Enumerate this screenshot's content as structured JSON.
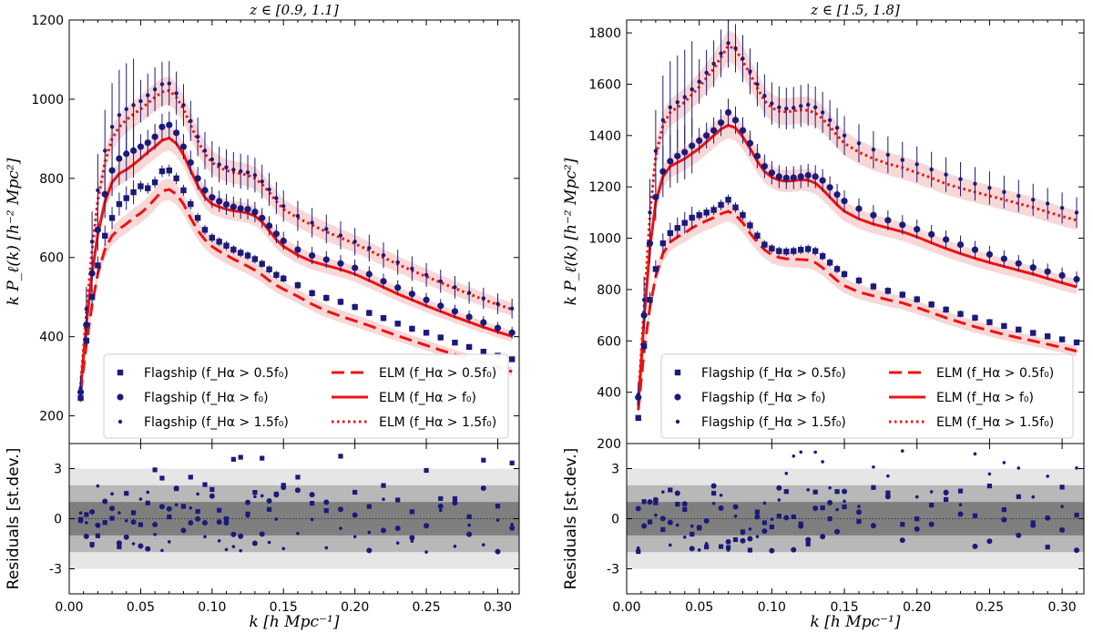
{
  "figure": {
    "ylabel_top": "k P_ℓ(k) [h⁻² Mpc²]",
    "ylabel_bottom": "Residuals [st.dev.]",
    "xlabel": "k [h Mpc⁻¹]"
  },
  "legend": {
    "flagship_05": "Flagship (f_Hα > 0.5f₀)",
    "flagship_10": "Flagship (f_Hα > f₀)",
    "flagship_15": "Flagship (f_Hα > 1.5f₀)",
    "elm_05": "ELM (f_Hα > 0.5f₀)",
    "elm_10": "ELM (f_Hα > f₀)",
    "elm_15": "ELM (f_Hα > 1.5f₀)"
  },
  "colors": {
    "data": "#1a1a7a",
    "model": "#ee1111",
    "band": "#f6c9c9"
  },
  "chart_data": [
    {
      "type": "scatter",
      "title": "z ∈ [0.9, 1.1]",
      "xlabel": "k [h Mpc⁻¹]",
      "ylabel": "k P_ℓ(k) [h⁻² Mpc²]",
      "xlim": [
        0.0,
        0.315
      ],
      "ylim": [
        130,
        1200
      ],
      "res_ylim": [
        -4.5,
        4.5
      ],
      "xticks": [
        "0.00",
        "0.05",
        "0.10",
        "0.15",
        "0.20",
        "0.25",
        "0.30"
      ],
      "yticks": [
        "200",
        "400",
        "600",
        "800",
        "1000",
        "1200"
      ],
      "res_yticks": [
        "-3",
        "0",
        "3"
      ],
      "model_k": [
        0.008,
        0.012,
        0.016,
        0.02,
        0.025,
        0.03,
        0.035,
        0.04,
        0.045,
        0.05,
        0.055,
        0.06,
        0.065,
        0.07,
        0.075,
        0.08,
        0.085,
        0.09,
        0.095,
        0.1,
        0.105,
        0.11,
        0.115,
        0.12,
        0.125,
        0.13,
        0.135,
        0.14,
        0.145,
        0.15,
        0.16,
        0.17,
        0.18,
        0.19,
        0.2,
        0.21,
        0.22,
        0.23,
        0.24,
        0.25,
        0.26,
        0.27,
        0.28,
        0.29,
        0.3,
        0.31
      ],
      "series": [
        {
          "name": "Flagship (f_Hα > 0.5f₀)",
          "marker": "square",
          "model": "dashed",
          "model_values": [
            260,
            380,
            480,
            560,
            620,
            655,
            672,
            685,
            700,
            712,
            728,
            748,
            768,
            772,
            760,
            735,
            700,
            668,
            645,
            628,
            616,
            606,
            596,
            587,
            578,
            568,
            556,
            542,
            530,
            520,
            502,
            482,
            465,
            452,
            440,
            428,
            415,
            402,
            390,
            378,
            366,
            355,
            344,
            333,
            322,
            312
          ],
          "data_values": [
            245,
            390,
            500,
            580,
            655,
            700,
            735,
            750,
            765,
            780,
            775,
            790,
            818,
            820,
            800,
            770,
            735,
            700,
            670,
            650,
            640,
            630,
            620,
            612,
            605,
            596,
            584,
            570,
            556,
            547,
            530,
            510,
            498,
            488,
            475,
            460,
            447,
            433,
            420,
            410,
            398,
            385,
            374,
            362,
            352,
            343
          ]
        },
        {
          "name": "Flagship (f_Hα > f₀)",
          "marker": "circle",
          "model": "solid",
          "model_values": [
            270,
            430,
            560,
            660,
            740,
            790,
            812,
            822,
            835,
            850,
            866,
            880,
            896,
            902,
            888,
            860,
            820,
            782,
            752,
            735,
            728,
            722,
            718,
            716,
            712,
            705,
            690,
            668,
            645,
            628,
            606,
            590,
            580,
            570,
            558,
            542,
            525,
            508,
            493,
            478,
            464,
            450,
            437,
            424,
            412,
            401
          ],
          "data_values": [
            260,
            430,
            560,
            670,
            760,
            820,
            850,
            862,
            870,
            880,
            890,
            905,
            930,
            935,
            915,
            880,
            840,
            800,
            770,
            752,
            742,
            734,
            728,
            724,
            722,
            715,
            700,
            680,
            660,
            642,
            620,
            605,
            595,
            585,
            574,
            558,
            540,
            524,
            508,
            493,
            478,
            464,
            450,
            436,
            422,
            410
          ]
        },
        {
          "name": "Flagship (f_Hα > 1.5f₀)",
          "marker": "dot",
          "model": "dotted",
          "model_values": [
            280,
            460,
            620,
            745,
            840,
            900,
            930,
            948,
            962,
            975,
            990,
            1005,
            1018,
            1022,
            1005,
            975,
            935,
            895,
            862,
            840,
            828,
            820,
            815,
            812,
            808,
            800,
            785,
            765,
            742,
            722,
            700,
            682,
            665,
            650,
            635,
            618,
            600,
            583,
            567,
            552,
            537,
            522,
            508,
            494,
            481,
            469
          ],
          "data_values": [
            270,
            470,
            640,
            770,
            870,
            930,
            960,
            975,
            985,
            995,
            1010,
            1025,
            1038,
            1040,
            1015,
            985,
            945,
            905,
            870,
            848,
            835,
            828,
            822,
            818,
            815,
            808,
            792,
            772,
            750,
            730,
            705,
            688,
            672,
            656,
            640,
            624,
            606,
            588,
            572,
            556,
            540,
            525,
            511,
            497,
            483,
            471
          ]
        }
      ]
    },
    {
      "type": "scatter",
      "title": "z ∈ [1.5, 1.8]",
      "xlabel": "k [h Mpc⁻¹]",
      "ylabel": "k P_ℓ(k) [h⁻² Mpc²]",
      "xlim": [
        0.0,
        0.315
      ],
      "ylim": [
        200,
        1850
      ],
      "res_ylim": [
        -4.5,
        4.5
      ],
      "xticks": [
        "0.00",
        "0.05",
        "0.10",
        "0.15",
        "0.20",
        "0.25",
        "0.30"
      ],
      "yticks": [
        "200",
        "400",
        "600",
        "800",
        "1000",
        "1200",
        "1400",
        "1600",
        "1800"
      ],
      "res_yticks": [
        "-3",
        "0",
        "3"
      ],
      "model_k": [
        0.008,
        0.012,
        0.016,
        0.02,
        0.025,
        0.03,
        0.035,
        0.04,
        0.045,
        0.05,
        0.055,
        0.06,
        0.065,
        0.07,
        0.075,
        0.08,
        0.085,
        0.09,
        0.095,
        0.1,
        0.105,
        0.11,
        0.115,
        0.12,
        0.125,
        0.13,
        0.135,
        0.14,
        0.145,
        0.15,
        0.16,
        0.17,
        0.18,
        0.19,
        0.2,
        0.21,
        0.22,
        0.23,
        0.24,
        0.25,
        0.26,
        0.27,
        0.28,
        0.29,
        0.3,
        0.31
      ],
      "series": [
        {
          "name": "Flagship (f_Hα > 0.5f₀)",
          "marker": "square",
          "model": "dashed",
          "model_values": [
            330,
            560,
            730,
            850,
            940,
            985,
            1005,
            1020,
            1040,
            1055,
            1068,
            1080,
            1095,
            1105,
            1090,
            1060,
            1020,
            985,
            955,
            935,
            925,
            920,
            918,
            917,
            915,
            905,
            885,
            860,
            835,
            815,
            790,
            775,
            760,
            748,
            730,
            710,
            690,
            672,
            655,
            640,
            625,
            612,
            600,
            587,
            574,
            560
          ],
          "data_values": [
            300,
            580,
            760,
            880,
            980,
            1020,
            1040,
            1060,
            1080,
            1090,
            1100,
            1110,
            1130,
            1150,
            1120,
            1090,
            1050,
            1010,
            975,
            960,
            950,
            948,
            950,
            955,
            958,
            950,
            930,
            905,
            880,
            860,
            835,
            812,
            795,
            780,
            762,
            742,
            722,
            705,
            690,
            673,
            658,
            644,
            631,
            618,
            606,
            594
          ]
        },
        {
          "name": "Flagship (f_Hα > f₀)",
          "marker": "circle",
          "model": "solid",
          "model_values": [
            350,
            680,
            960,
            1140,
            1240,
            1280,
            1295,
            1310,
            1330,
            1350,
            1375,
            1400,
            1425,
            1440,
            1430,
            1395,
            1350,
            1300,
            1260,
            1238,
            1226,
            1222,
            1224,
            1228,
            1226,
            1215,
            1190,
            1160,
            1130,
            1105,
            1075,
            1055,
            1040,
            1025,
            1005,
            982,
            960,
            940,
            922,
            905,
            890,
            875,
            860,
            843,
            826,
            810
          ],
          "data_values": [
            380,
            700,
            980,
            1160,
            1260,
            1300,
            1320,
            1335,
            1360,
            1380,
            1400,
            1420,
            1450,
            1490,
            1460,
            1420,
            1370,
            1320,
            1280,
            1255,
            1240,
            1235,
            1236,
            1240,
            1245,
            1240,
            1225,
            1198,
            1170,
            1145,
            1115,
            1090,
            1070,
            1052,
            1035,
            1015,
            995,
            975,
            955,
            937,
            920,
            902,
            886,
            870,
            855,
            840
          ]
        },
        {
          "name": "Flagship (f_Hα > 1.5f₀)",
          "marker": "dot",
          "model": "dotted",
          "model_values": [
            370,
            730,
            1090,
            1320,
            1440,
            1490,
            1510,
            1530,
            1560,
            1590,
            1625,
            1660,
            1705,
            1750,
            1735,
            1690,
            1640,
            1585,
            1535,
            1508,
            1495,
            1492,
            1496,
            1500,
            1498,
            1488,
            1465,
            1435,
            1400,
            1370,
            1335,
            1310,
            1290,
            1275,
            1255,
            1235,
            1212,
            1195,
            1180,
            1165,
            1150,
            1135,
            1120,
            1102,
            1085,
            1070
          ],
          "data_values": [
            390,
            760,
            1100,
            1340,
            1460,
            1510,
            1530,
            1550,
            1580,
            1610,
            1645,
            1680,
            1720,
            1760,
            1740,
            1700,
            1650,
            1600,
            1555,
            1525,
            1510,
            1505,
            1508,
            1515,
            1520,
            1510,
            1490,
            1460,
            1430,
            1400,
            1370,
            1345,
            1325,
            1305,
            1288,
            1268,
            1248,
            1230,
            1212,
            1196,
            1180,
            1165,
            1150,
            1135,
            1118,
            1100
          ]
        }
      ]
    }
  ]
}
